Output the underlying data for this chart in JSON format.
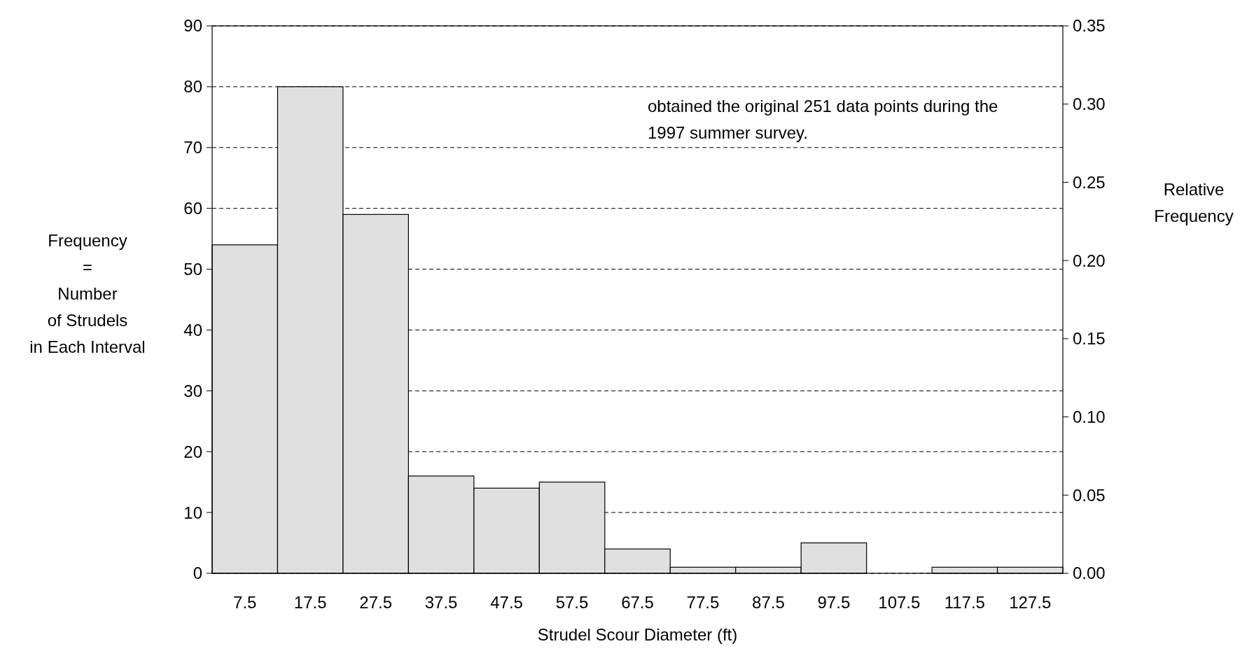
{
  "chart_data": {
    "type": "bar",
    "xlabel": "Strudel Scour Diameter (ft)",
    "ylabel": "Frequency\n=\nNumber\nof Strudels\nin Each Interval",
    "y2label": "Relative\nFrequency",
    "categories": [
      "7.5",
      "17.5",
      "27.5",
      "37.5",
      "47.5",
      "57.5",
      "67.5",
      "77.5",
      "87.5",
      "97.5",
      "107.5",
      "117.5",
      "127.5"
    ],
    "values": [
      54,
      80,
      59,
      16,
      14,
      15,
      4,
      1,
      1,
      5,
      0,
      1,
      1
    ],
    "color": "#e0e0e0",
    "ylim": [
      0,
      90
    ],
    "yticks": [
      0,
      10,
      20,
      30,
      40,
      50,
      60,
      70,
      80,
      90
    ],
    "y2lim": [
      0,
      0.35
    ],
    "y2ticks": [
      {
        "value": 0,
        "label": "0.00"
      },
      {
        "value": 0.05,
        "label": "0.05"
      },
      {
        "value": 0.1,
        "label": "0.10"
      },
      {
        "value": 0.15,
        "label": "0.15"
      },
      {
        "value": 0.2,
        "label": "0.20"
      },
      {
        "value": 0.25,
        "label": "0.25"
      },
      {
        "value": 0.3,
        "label": "0.30"
      },
      {
        "value": 0.35,
        "label": "0.35"
      }
    ],
    "grid": "y",
    "annotations": [
      "obtained the original 251 data points during the\n1997 summer survey."
    ]
  }
}
